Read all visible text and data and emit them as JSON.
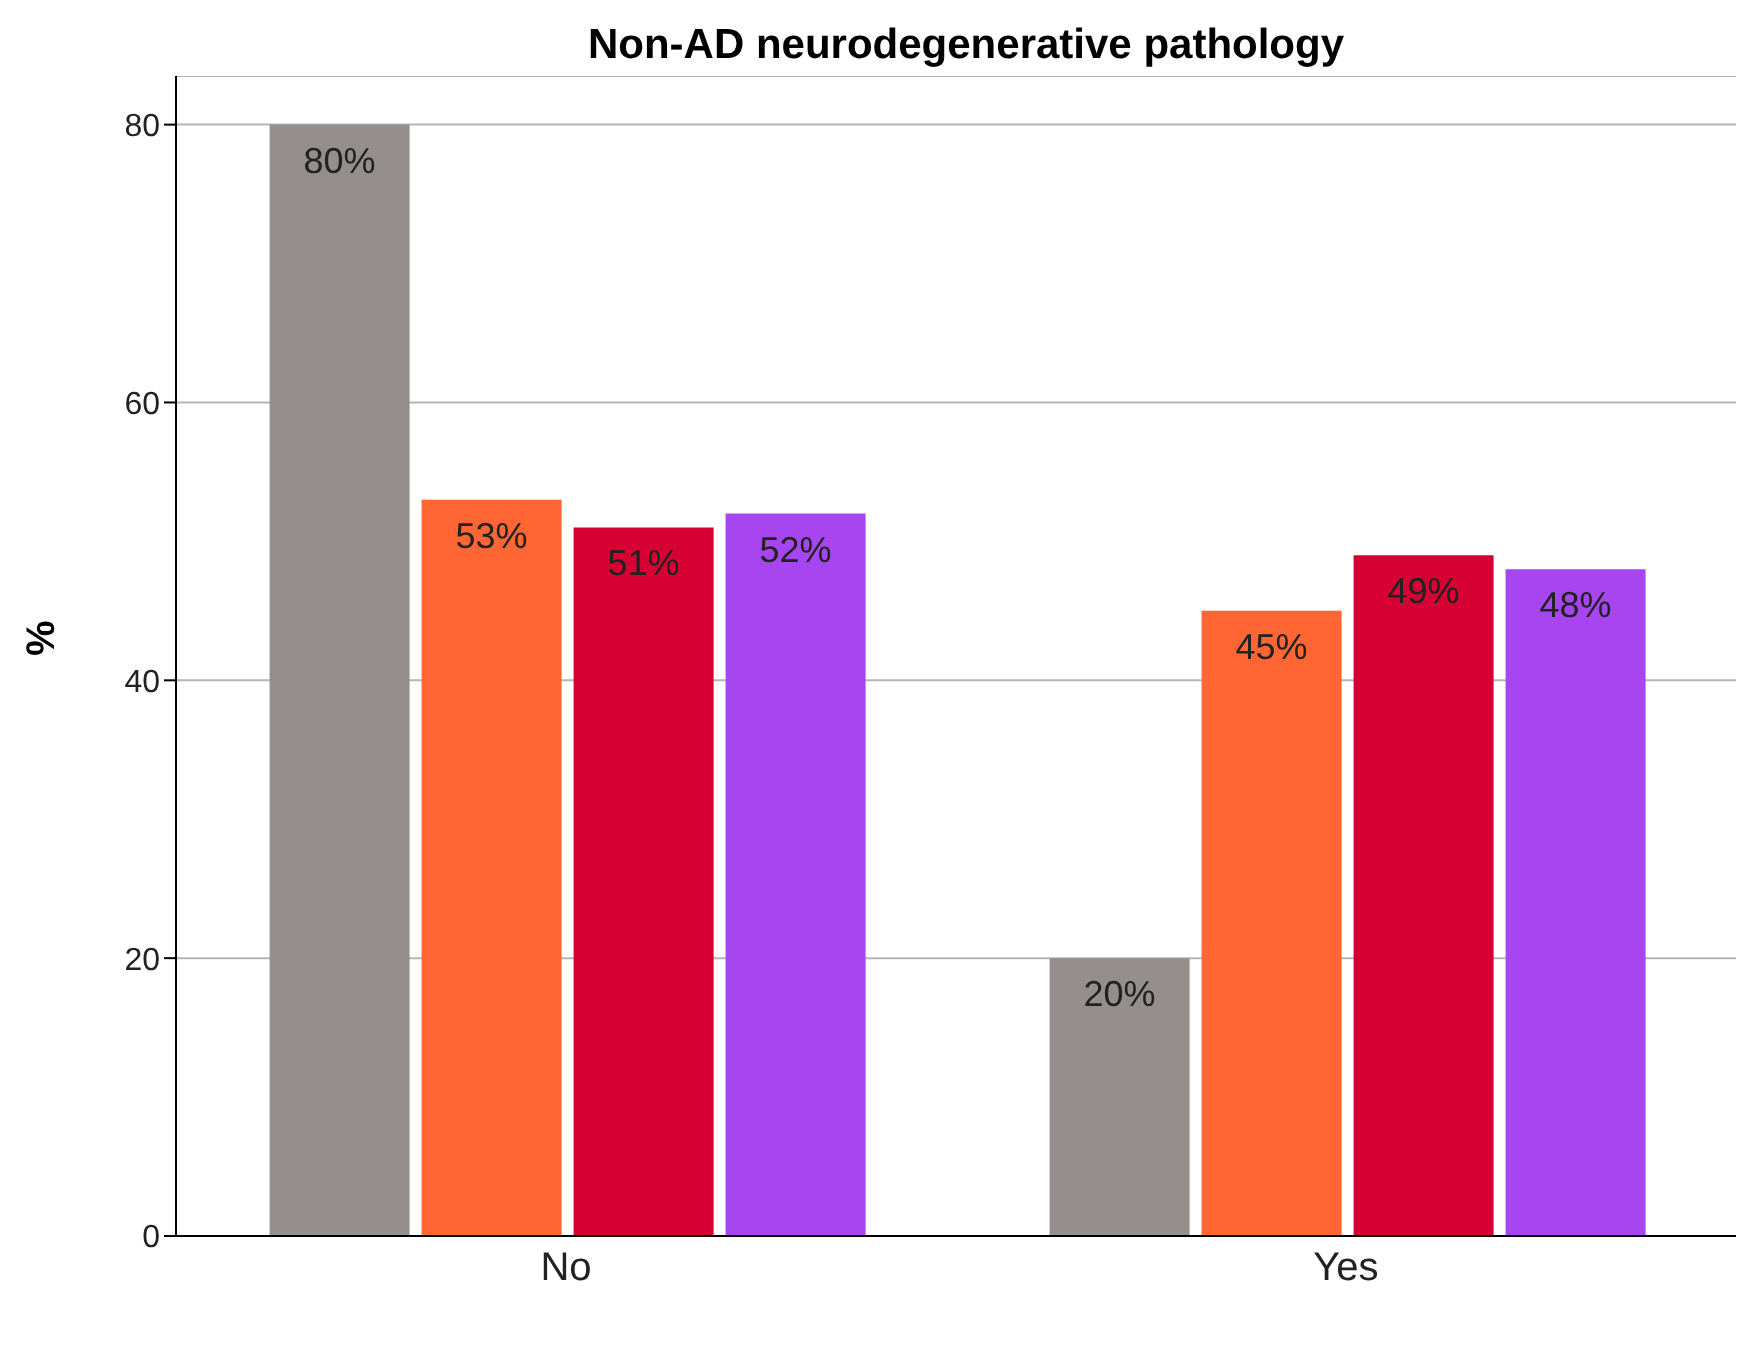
{
  "chart_data": {
    "type": "bar",
    "title": "Non-AD neurodegenerative pathology",
    "ylabel": "%",
    "categories": [
      "No",
      "Yes"
    ],
    "series": [
      {
        "color": "#948f8c",
        "values": [
          80,
          20
        ],
        "value_labels": [
          "80%",
          "20%"
        ]
      },
      {
        "color": "#ff6633",
        "values": [
          53,
          45
        ],
        "value_labels": [
          "53%",
          "45%"
        ]
      },
      {
        "color": "#d70033",
        "values": [
          51,
          49
        ],
        "value_labels": [
          "51%",
          "49%"
        ]
      },
      {
        "color": "#a746f0",
        "values": [
          52,
          48
        ],
        "value_labels": [
          "52%",
          "48%"
        ]
      }
    ],
    "ylim": [
      0,
      83.5
    ],
    "yticks": [
      0,
      20,
      40,
      60,
      80
    ],
    "grid": "y",
    "legend": false
  }
}
